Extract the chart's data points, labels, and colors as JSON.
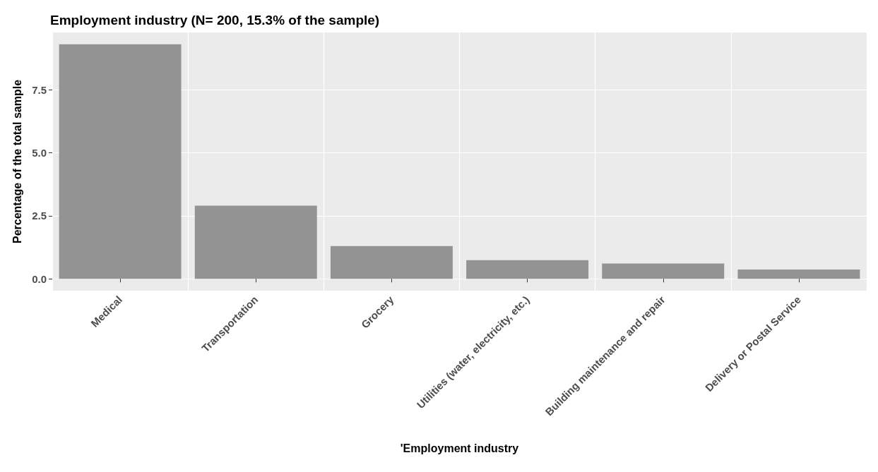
{
  "chart_data": {
    "type": "bar",
    "title": "Employment industry (N= 200, 15.3% of the sample)",
    "xlabel": "'Employment industry",
    "ylabel": "Percentage of the total sample",
    "categories": [
      "Medical",
      "Transportation",
      "Grocery",
      "Utilities (water, electricity, etc.)",
      "Building maintenance and repair",
      "Delivery or Postal Service"
    ],
    "values": [
      9.3,
      2.9,
      1.3,
      0.74,
      0.61,
      0.37
    ],
    "color": "#939393",
    "ylim": [
      -0.47,
      9.77
    ],
    "yticks": [
      {
        "value": 0,
        "label": "0.0"
      },
      {
        "value": 2.5,
        "label": "2.5"
      },
      {
        "value": 5,
        "label": "5.0"
      },
      {
        "value": 7.5,
        "label": "7.5"
      }
    ],
    "grid": true
  }
}
